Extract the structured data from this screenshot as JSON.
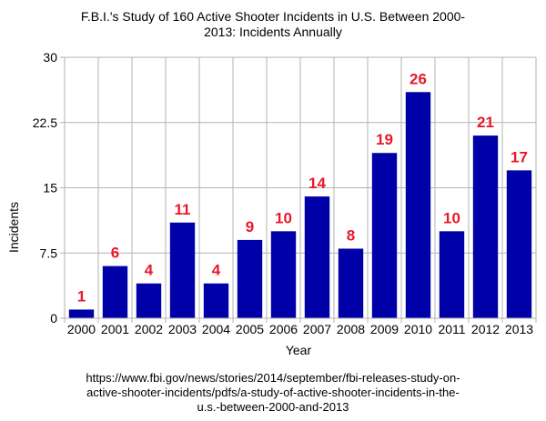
{
  "chart_data": {
    "type": "bar",
    "title_lines": [
      "F.B.I.'s Study of 160 Active Shooter Incidents in U.S. Between 2000-",
      "2013: Incidents Annually"
    ],
    "xlabel": "Year",
    "ylabel": "Incidents",
    "categories": [
      "2000",
      "2001",
      "2002",
      "2003",
      "2004",
      "2005",
      "2006",
      "2007",
      "2008",
      "2009",
      "2010",
      "2011",
      "2012",
      "2013"
    ],
    "values": [
      1,
      6,
      4,
      11,
      4,
      9,
      10,
      14,
      8,
      19,
      26,
      10,
      21,
      17
    ],
    "ylim": [
      0,
      30
    ],
    "yticks": [
      0,
      7.5,
      15,
      22.5,
      30
    ],
    "ytick_labels": [
      "0",
      "7.5",
      "15",
      "22.5",
      "30"
    ],
    "grid": true,
    "bar_color": "#0000a8",
    "label_color": "#e8192c",
    "grid_color": "#b3b3b3"
  },
  "source_lines": [
    "https://www.fbi.gov/news/stories/2014/september/fbi-releases-study-on-",
    "active-shooter-incidents/pdfs/a-study-of-active-shooter-incidents-in-the-",
    "u.s.-between-2000-and-2013"
  ]
}
